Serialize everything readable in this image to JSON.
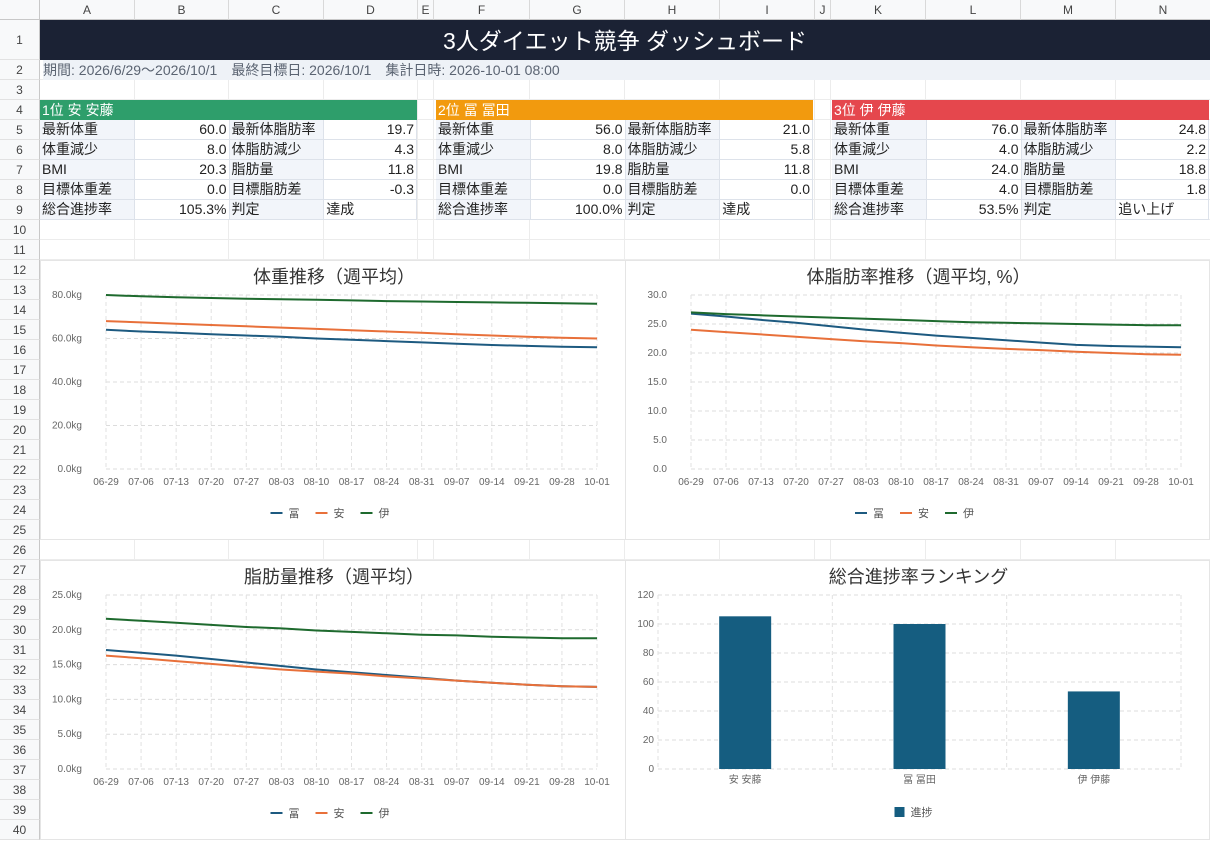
{
  "columns": [
    "A",
    "B",
    "C",
    "D",
    "E",
    "F",
    "G",
    "H",
    "I",
    "J",
    "K",
    "L",
    "M",
    "N"
  ],
  "rows": [
    "1",
    "2",
    "3",
    "4",
    "5",
    "6",
    "7",
    "8",
    "9",
    "10",
    "11",
    "12",
    "13",
    "14",
    "15",
    "16",
    "17",
    "18",
    "19",
    "20",
    "21",
    "22",
    "23",
    "24",
    "25",
    "26",
    "27",
    "28",
    "29",
    "30",
    "31",
    "32",
    "33",
    "34",
    "35",
    "36",
    "37",
    "38",
    "39",
    "40"
  ],
  "title": "3人ダイエット競争 ダッシュボード",
  "subtitle": "期間: 2026/6/29〜2026/10/1　最終目標日: 2026/10/1　集計日時: 2026-10-01 08:00",
  "colors": {
    "banner": "#1b2234",
    "series_tomi": "#1d5a80",
    "series_yasu": "#e8703a",
    "series_i": "#1e6a2e",
    "bar": "#155d80"
  },
  "cards": [
    {
      "header": "1位 安 安藤",
      "color": "#2e9e6b",
      "rows": [
        [
          "最新体重",
          "60.0",
          "最新体脂肪率",
          "19.7"
        ],
        [
          "体重減少",
          "8.0",
          "体脂肪減少",
          "4.3"
        ],
        [
          "BMI",
          "20.3",
          "脂肪量",
          "11.8"
        ],
        [
          "目標体重差",
          "0.0",
          "目標脂肪差",
          "-0.3"
        ],
        [
          "総合進捗率",
          "105.3%",
          "判定",
          "達成"
        ]
      ]
    },
    {
      "header": "2位 冨 冨田",
      "color": "#f29a0e",
      "rows": [
        [
          "最新体重",
          "56.0",
          "最新体脂肪率",
          "21.0"
        ],
        [
          "体重減少",
          "8.0",
          "体脂肪減少",
          "5.8"
        ],
        [
          "BMI",
          "19.8",
          "脂肪量",
          "11.8"
        ],
        [
          "目標体重差",
          "0.0",
          "目標脂肪差",
          "0.0"
        ],
        [
          "総合進捗率",
          "100.0%",
          "判定",
          "達成"
        ]
      ]
    },
    {
      "header": "3位 伊 伊藤",
      "color": "#e5474d",
      "rows": [
        [
          "最新体重",
          "76.0",
          "最新体脂肪率",
          "24.8"
        ],
        [
          "体重減少",
          "4.0",
          "体脂肪減少",
          "2.2"
        ],
        [
          "BMI",
          "24.0",
          "脂肪量",
          "18.8"
        ],
        [
          "目標体重差",
          "4.0",
          "目標脂肪差",
          "1.8"
        ],
        [
          "総合進捗率",
          "53.5%",
          "判定",
          "追い上げ"
        ]
      ]
    }
  ],
  "chart_data": [
    {
      "type": "line",
      "title": "体重推移（週平均）",
      "x": [
        "06-29",
        "07-06",
        "07-13",
        "07-20",
        "07-27",
        "08-03",
        "08-10",
        "08-17",
        "08-24",
        "08-31",
        "09-07",
        "09-14",
        "09-21",
        "09-28",
        "10-01"
      ],
      "ylim": [
        0,
        80
      ],
      "yticks": [
        "0.0kg",
        "20.0kg",
        "40.0kg",
        "60.0kg",
        "80.0kg"
      ],
      "grid": true,
      "legend": "bottom",
      "series": [
        {
          "name": "冨",
          "values": [
            64.0,
            63.2,
            62.6,
            62.0,
            61.4,
            60.8,
            60.0,
            59.4,
            58.8,
            58.2,
            57.6,
            57.0,
            56.6,
            56.2,
            56.0
          ]
        },
        {
          "name": "安",
          "values": [
            68.0,
            67.4,
            66.8,
            66.2,
            65.6,
            65.0,
            64.4,
            63.8,
            63.2,
            62.6,
            62.0,
            61.4,
            60.8,
            60.3,
            60.0
          ]
        },
        {
          "name": "伊",
          "values": [
            80.0,
            79.4,
            79.0,
            78.6,
            78.3,
            78.0,
            77.8,
            77.5,
            77.2,
            77.0,
            76.8,
            76.6,
            76.4,
            76.2,
            76.0
          ]
        }
      ]
    },
    {
      "type": "line",
      "title": "体脂肪率推移（週平均, %）",
      "x": [
        "06-29",
        "07-06",
        "07-13",
        "07-20",
        "07-27",
        "08-03",
        "08-10",
        "08-17",
        "08-24",
        "08-31",
        "09-07",
        "09-14",
        "09-21",
        "09-28",
        "10-01"
      ],
      "ylim": [
        0,
        30
      ],
      "yticks": [
        "0.0",
        "5.0",
        "10.0",
        "15.0",
        "20.0",
        "25.0",
        "30.0"
      ],
      "grid": true,
      "legend": "bottom",
      "series": [
        {
          "name": "冨",
          "values": [
            26.8,
            26.3,
            25.7,
            25.2,
            24.6,
            24.0,
            23.5,
            23.0,
            22.6,
            22.2,
            21.8,
            21.4,
            21.2,
            21.1,
            21.0
          ]
        },
        {
          "name": "安",
          "values": [
            24.0,
            23.6,
            23.2,
            22.8,
            22.4,
            22.0,
            21.7,
            21.3,
            21.0,
            20.7,
            20.5,
            20.2,
            20.0,
            19.8,
            19.7
          ]
        },
        {
          "name": "伊",
          "values": [
            27.0,
            26.7,
            26.5,
            26.3,
            26.1,
            25.9,
            25.7,
            25.5,
            25.3,
            25.2,
            25.1,
            25.0,
            24.9,
            24.8,
            24.8
          ]
        }
      ]
    },
    {
      "type": "line",
      "title": "脂肪量推移（週平均）",
      "x": [
        "06-29",
        "07-06",
        "07-13",
        "07-20",
        "07-27",
        "08-03",
        "08-10",
        "08-17",
        "08-24",
        "08-31",
        "09-07",
        "09-14",
        "09-21",
        "09-28",
        "10-01"
      ],
      "ylim": [
        0,
        25
      ],
      "yticks": [
        "0.0kg",
        "5.0kg",
        "10.0kg",
        "15.0kg",
        "20.0kg",
        "25.0kg"
      ],
      "grid": true,
      "legend": "bottom",
      "series": [
        {
          "name": "冨",
          "values": [
            17.1,
            16.7,
            16.3,
            15.8,
            15.3,
            14.8,
            14.3,
            13.9,
            13.5,
            13.1,
            12.7,
            12.4,
            12.1,
            11.9,
            11.8
          ]
        },
        {
          "name": "安",
          "values": [
            16.3,
            15.9,
            15.5,
            15.1,
            14.7,
            14.3,
            14.0,
            13.7,
            13.3,
            13.0,
            12.7,
            12.4,
            12.1,
            11.9,
            11.8
          ]
        },
        {
          "name": "伊",
          "values": [
            21.6,
            21.3,
            21.0,
            20.7,
            20.4,
            20.2,
            19.9,
            19.7,
            19.5,
            19.3,
            19.2,
            19.0,
            18.9,
            18.8,
            18.8
          ]
        }
      ]
    },
    {
      "type": "bar",
      "title": "総合進捗率ランキング",
      "categories": [
        "安 安藤",
        "冨 冨田",
        "伊 伊藤"
      ],
      "ylim": [
        0,
        120
      ],
      "yticks": [
        "0",
        "20",
        "40",
        "60",
        "80",
        "100",
        "120"
      ],
      "grid": true,
      "legend": "bottom",
      "series": [
        {
          "name": "進捗",
          "values": [
            105.3,
            100.0,
            53.5
          ]
        }
      ]
    }
  ]
}
